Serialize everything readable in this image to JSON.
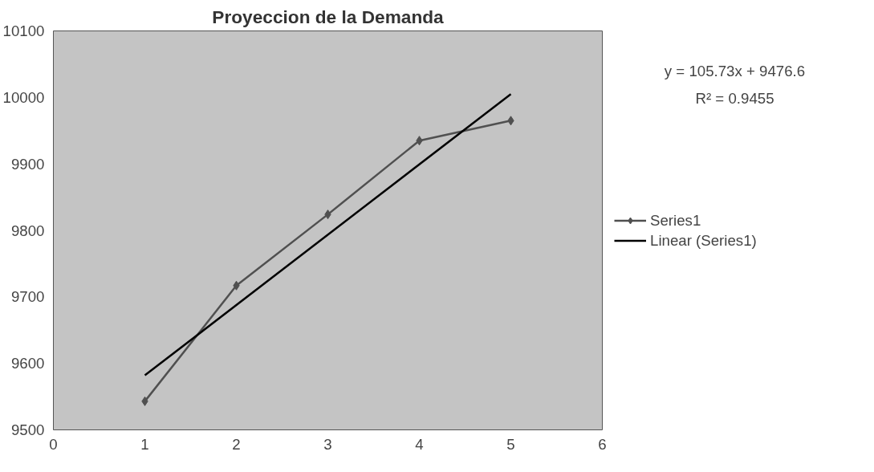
{
  "chart_data": {
    "type": "line",
    "title": "Proyeccion de la Demanda",
    "x": [
      1,
      2,
      3,
      4,
      5
    ],
    "series": [
      {
        "name": "Series1",
        "color": "#505050",
        "values": [
          9543,
          9717,
          9824,
          9935,
          9965
        ],
        "marker": "diamond"
      },
      {
        "name": "Linear (Series1)",
        "type": "line",
        "color": "#000000",
        "x": [
          1,
          5
        ],
        "values": [
          9582,
          10005
        ],
        "marker": "none"
      }
    ],
    "xlim": [
      0,
      6
    ],
    "xticks": [
      0,
      1,
      2,
      3,
      4,
      5,
      6
    ],
    "ylim": [
      9500,
      10100
    ],
    "yticks": [
      9500,
      9600,
      9700,
      9800,
      9900,
      10000,
      10100
    ],
    "grid": false,
    "legend": "right",
    "line_style": "solid",
    "annotations": [
      "y = 105.73x + 9476.6",
      "R² = 0.9455"
    ]
  }
}
